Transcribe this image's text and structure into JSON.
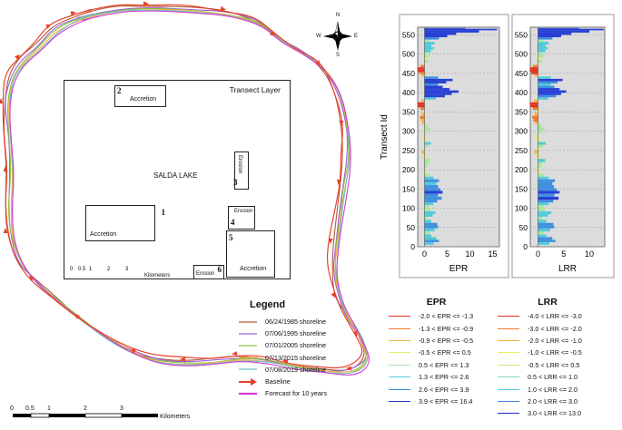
{
  "inset": {
    "title": "Transect Layer",
    "lake_name": "SALDA LAKE",
    "scalebar_ticks": [
      "0",
      "0.5",
      "1",
      "2",
      "3"
    ],
    "scalebar_unit": "Kilometers",
    "boxes": [
      {
        "number": "2",
        "label": "Accretion"
      },
      {
        "number": "1",
        "label": "Accretion"
      },
      {
        "number": "3",
        "label": "Erosion"
      },
      {
        "number": "4",
        "label": "Erosion"
      },
      {
        "number": "5",
        "label": "Accretion"
      },
      {
        "number": "6",
        "label": "Erosion"
      }
    ]
  },
  "main_scalebar": {
    "ticks": [
      "0",
      "0.5",
      "1",
      "2",
      "3"
    ],
    "unit": "Kilometers"
  },
  "north_arrow": {
    "n": "N",
    "s": "S",
    "e": "E",
    "w": "W"
  },
  "legend": {
    "title": "Legend",
    "items": [
      {
        "label": "06/24/1985 shoreline",
        "color": "#b05a3c",
        "kind": "line"
      },
      {
        "label": "07/06/1995 shoreline",
        "color": "#9b5fd6",
        "kind": "line"
      },
      {
        "label": "07/01/2005 shoreline",
        "color": "#8fbf3a",
        "kind": "line"
      },
      {
        "label": "07/13/2015 shoreline",
        "color": "#e9b24c",
        "kind": "line"
      },
      {
        "label": "07/08/2019 shoreline",
        "color": "#6fc3c7",
        "kind": "line"
      },
      {
        "label": "Baseline",
        "color": "#e8412a",
        "kind": "arrow"
      },
      {
        "label": "Forecast for 10 years",
        "color": "#d63ccf",
        "kind": "line"
      }
    ]
  },
  "epr_classes": {
    "title": "EPR",
    "items": [
      {
        "label": "-2.0 < EPR <= -1.3",
        "color": "#e53322"
      },
      {
        "label": "-1.3 < EPR <= -0.9",
        "color": "#f07a2a"
      },
      {
        "label": "-0.9 < EPR <= -0.5",
        "color": "#f1b53d"
      },
      {
        "label": "-0.5 < EPR <= 0.5",
        "color": "#e9ee5c"
      },
      {
        "label": "0.5 < EPR <= 1.3",
        "color": "#a8e7a0"
      },
      {
        "label": "1.3 < EPR <= 2.6",
        "color": "#52cbd8"
      },
      {
        "label": "2.6 < EPR <= 3.9",
        "color": "#3f8fe0"
      },
      {
        "label": "3.9 < EPR <= 16.4",
        "color": "#283fd6"
      }
    ]
  },
  "lrr_classes": {
    "title": "LRR",
    "items": [
      {
        "label": "-4.0 < LRR <= -3.0",
        "color": "#e53322"
      },
      {
        "label": "-3.0 < LRR <= -2.0",
        "color": "#f07a2a"
      },
      {
        "label": "-2.0 < LRR <= -1.0",
        "color": "#f1b53d"
      },
      {
        "label": "-1.0 < LRR <= -0.5",
        "color": "#e9ee5c"
      },
      {
        "label": "-0.5 < LRR <= 0.5",
        "color": "#c4ec7a"
      },
      {
        "label": "0.5 < LRR <= 1.0",
        "color": "#7fe0b0"
      },
      {
        "label": "1.0 < LRR <= 2.0",
        "color": "#52cbd8"
      },
      {
        "label": "2.0 < LRR <= 3.0",
        "color": "#3f8fe0"
      },
      {
        "label": "3.0 < LRR <= 13.0",
        "color": "#1c2fc4"
      }
    ]
  },
  "chart_data": [
    {
      "type": "bar",
      "orientation": "horizontal",
      "xlabel": "EPR",
      "ylabel": "Transect Id",
      "xticks": [
        0,
        5,
        10,
        15
      ],
      "yticks": [
        0,
        50,
        100,
        150,
        200,
        250,
        300,
        350,
        400,
        450,
        500,
        550
      ],
      "xlim": [
        -1.5,
        16.5
      ],
      "ylim": [
        0,
        570
      ],
      "profile": [
        {
          "id": 5,
          "value": 2.0
        },
        {
          "id": 12,
          "value": 3.2
        },
        {
          "id": 18,
          "value": 2.6
        },
        {
          "id": 25,
          "value": 1.5
        },
        {
          "id": 32,
          "value": 1.0
        },
        {
          "id": 40,
          "value": 2.2
        },
        {
          "id": 48,
          "value": 3.0
        },
        {
          "id": 55,
          "value": 2.8
        },
        {
          "id": 62,
          "value": 1.5
        },
        {
          "id": 70,
          "value": 0.8
        },
        {
          "id": 78,
          "value": 1.8
        },
        {
          "id": 85,
          "value": 2.4
        },
        {
          "id": 92,
          "value": 1.2
        },
        {
          "id": 100,
          "value": 1.0
        },
        {
          "id": 108,
          "value": 1.9
        },
        {
          "id": 115,
          "value": 2.8
        },
        {
          "id": 122,
          "value": 3.8
        },
        {
          "id": 130,
          "value": 3.0
        },
        {
          "id": 138,
          "value": 4.0
        },
        {
          "id": 145,
          "value": 3.5
        },
        {
          "id": 152,
          "value": 3.0
        },
        {
          "id": 160,
          "value": 2.6
        },
        {
          "id": 168,
          "value": 3.2
        },
        {
          "id": 175,
          "value": 2.0
        },
        {
          "id": 182,
          "value": 1.0
        },
        {
          "id": 190,
          "value": 0.4
        },
        {
          "id": 198,
          "value": -0.3
        },
        {
          "id": 205,
          "value": 0.6
        },
        {
          "id": 212,
          "value": 0.8
        },
        {
          "id": 220,
          "value": 1.3
        },
        {
          "id": 228,
          "value": 0.4
        },
        {
          "id": 235,
          "value": -0.4
        },
        {
          "id": 242,
          "value": -0.6
        },
        {
          "id": 250,
          "value": 0.3
        },
        {
          "id": 258,
          "value": 0.9
        },
        {
          "id": 265,
          "value": 1.4
        },
        {
          "id": 272,
          "value": 0.5
        },
        {
          "id": 280,
          "value": -0.4
        },
        {
          "id": 288,
          "value": 0.2
        },
        {
          "id": 295,
          "value": 0.7
        },
        {
          "id": 302,
          "value": 1.2
        },
        {
          "id": 310,
          "value": 0.6
        },
        {
          "id": 318,
          "value": -0.5
        },
        {
          "id": 325,
          "value": -0.8
        },
        {
          "id": 332,
          "value": -1.0
        },
        {
          "id": 340,
          "value": -0.6
        },
        {
          "id": 348,
          "value": 0.3
        },
        {
          "id": 355,
          "value": -0.9
        },
        {
          "id": 362,
          "value": -1.4
        },
        {
          "id": 368,
          "value": -1.6
        },
        {
          "id": 375,
          "value": -0.7
        },
        {
          "id": 382,
          "value": 2.5
        },
        {
          "id": 388,
          "value": 4.5
        },
        {
          "id": 394,
          "value": 6.0
        },
        {
          "id": 400,
          "value": 7.5
        },
        {
          "id": 406,
          "value": 5.5
        },
        {
          "id": 412,
          "value": 4.0
        },
        {
          "id": 418,
          "value": 3.0
        },
        {
          "id": 424,
          "value": 4.8
        },
        {
          "id": 430,
          "value": 6.2
        },
        {
          "id": 436,
          "value": 3.0
        },
        {
          "id": 442,
          "value": -0.6
        },
        {
          "id": 448,
          "value": -1.2
        },
        {
          "id": 454,
          "value": -1.5
        },
        {
          "id": 460,
          "value": -1.5
        },
        {
          "id": 466,
          "value": -0.9
        },
        {
          "id": 472,
          "value": 0.3
        },
        {
          "id": 478,
          "value": 0.8
        },
        {
          "id": 485,
          "value": 0.5
        },
        {
          "id": 492,
          "value": 1.2
        },
        {
          "id": 498,
          "value": 0.6
        },
        {
          "id": 505,
          "value": 1.4
        },
        {
          "id": 512,
          "value": 2.0
        },
        {
          "id": 518,
          "value": 1.5
        },
        {
          "id": 525,
          "value": 2.2
        },
        {
          "id": 532,
          "value": 1.0
        },
        {
          "id": 538,
          "value": 3.2
        },
        {
          "id": 544,
          "value": 5.0
        },
        {
          "id": 550,
          "value": 7.0
        },
        {
          "id": 556,
          "value": 12.0
        },
        {
          "id": 562,
          "value": 16.0
        },
        {
          "id": 566,
          "value": 9.0
        }
      ]
    },
    {
      "type": "bar",
      "orientation": "horizontal",
      "xlabel": "LRR",
      "ylabel": "",
      "xticks": [
        0,
        5,
        10
      ],
      "yticks": [
        0,
        50,
        100,
        150,
        200,
        250,
        300,
        350,
        400,
        450,
        500,
        550
      ],
      "xlim": [
        -1.5,
        13.0
      ],
      "ylim": [
        0,
        570
      ],
      "profile": [
        {
          "id": 5,
          "value": 2.2
        },
        {
          "id": 12,
          "value": 3.4
        },
        {
          "id": 18,
          "value": 2.8
        },
        {
          "id": 25,
          "value": 1.6
        },
        {
          "id": 32,
          "value": 1.1
        },
        {
          "id": 40,
          "value": 2.4
        },
        {
          "id": 48,
          "value": 3.2
        },
        {
          "id": 55,
          "value": 3.0
        },
        {
          "id": 62,
          "value": 1.6
        },
        {
          "id": 70,
          "value": 0.9
        },
        {
          "id": 78,
          "value": 2.0
        },
        {
          "id": 85,
          "value": 2.6
        },
        {
          "id": 92,
          "value": 1.3
        },
        {
          "id": 100,
          "value": 1.1
        },
        {
          "id": 108,
          "value": 2.1
        },
        {
          "id": 115,
          "value": 3.0
        },
        {
          "id": 122,
          "value": 4.0
        },
        {
          "id": 130,
          "value": 3.2
        },
        {
          "id": 138,
          "value": 4.2
        },
        {
          "id": 145,
          "value": 3.6
        },
        {
          "id": 152,
          "value": 3.1
        },
        {
          "id": 160,
          "value": 2.8
        },
        {
          "id": 168,
          "value": 3.3
        },
        {
          "id": 175,
          "value": 2.1
        },
        {
          "id": 182,
          "value": 1.1
        },
        {
          "id": 190,
          "value": 0.4
        },
        {
          "id": 198,
          "value": -0.3
        },
        {
          "id": 205,
          "value": 0.6
        },
        {
          "id": 212,
          "value": 0.9
        },
        {
          "id": 220,
          "value": 1.4
        },
        {
          "id": 228,
          "value": 0.4
        },
        {
          "id": 235,
          "value": -0.4
        },
        {
          "id": 242,
          "value": -0.7
        },
        {
          "id": 250,
          "value": 0.3
        },
        {
          "id": 258,
          "value": 1.0
        },
        {
          "id": 265,
          "value": 1.5
        },
        {
          "id": 272,
          "value": 0.5
        },
        {
          "id": 280,
          "value": -0.4
        },
        {
          "id": 288,
          "value": 0.2
        },
        {
          "id": 295,
          "value": 0.8
        },
        {
          "id": 302,
          "value": 1.3
        },
        {
          "id": 310,
          "value": 0.6
        },
        {
          "id": 318,
          "value": -0.6
        },
        {
          "id": 325,
          "value": -0.9
        },
        {
          "id": 332,
          "value": -1.1
        },
        {
          "id": 340,
          "value": -0.7
        },
        {
          "id": 348,
          "value": 0.3
        },
        {
          "id": 355,
          "value": -1.0
        },
        {
          "id": 362,
          "value": -1.5
        },
        {
          "id": 368,
          "value": -1.6
        },
        {
          "id": 375,
          "value": -0.8
        },
        {
          "id": 382,
          "value": 2.0
        },
        {
          "id": 388,
          "value": 3.5
        },
        {
          "id": 394,
          "value": 4.5
        },
        {
          "id": 400,
          "value": 5.5
        },
        {
          "id": 406,
          "value": 4.2
        },
        {
          "id": 412,
          "value": 3.2
        },
        {
          "id": 418,
          "value": 2.5
        },
        {
          "id": 424,
          "value": 3.8
        },
        {
          "id": 430,
          "value": 4.8
        },
        {
          "id": 436,
          "value": 2.5
        },
        {
          "id": 442,
          "value": -0.7
        },
        {
          "id": 448,
          "value": -1.3
        },
        {
          "id": 454,
          "value": -1.6
        },
        {
          "id": 460,
          "value": -1.6
        },
        {
          "id": 466,
          "value": -1.0
        },
        {
          "id": 472,
          "value": 0.3
        },
        {
          "id": 478,
          "value": 0.8
        },
        {
          "id": 485,
          "value": 0.5
        },
        {
          "id": 492,
          "value": 1.2
        },
        {
          "id": 498,
          "value": 0.6
        },
        {
          "id": 505,
          "value": 1.4
        },
        {
          "id": 512,
          "value": 1.9
        },
        {
          "id": 518,
          "value": 1.5
        },
        {
          "id": 525,
          "value": 2.1
        },
        {
          "id": 532,
          "value": 1.0
        },
        {
          "id": 538,
          "value": 2.8
        },
        {
          "id": 544,
          "value": 4.5
        },
        {
          "id": 550,
          "value": 6.5
        },
        {
          "id": 556,
          "value": 10.0
        },
        {
          "id": 562,
          "value": 12.8
        },
        {
          "id": 566,
          "value": 8.0
        }
      ]
    }
  ]
}
